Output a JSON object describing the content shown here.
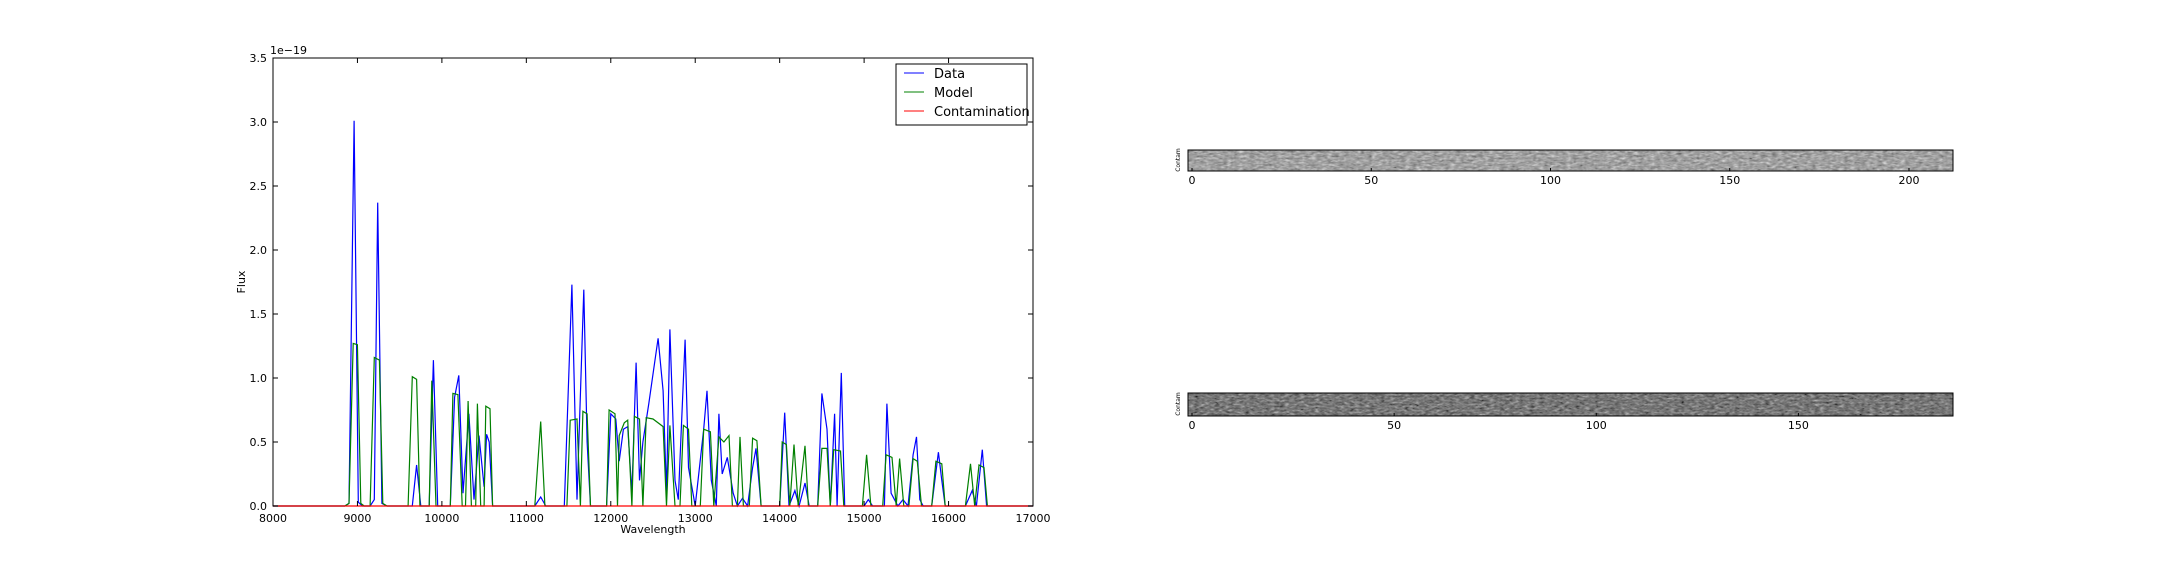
{
  "chart_data": [
    {
      "type": "line",
      "title": "",
      "xlabel": "Wavelength",
      "ylabel": "Flux",
      "y_offset_label": "1e−19",
      "xlim": [
        8000,
        17000
      ],
      "ylim": [
        0,
        3.5
      ],
      "xticks": [
        "8000",
        "9000",
        "10000",
        "11000",
        "12000",
        "13000",
        "14000",
        "15000",
        "16000",
        "17000"
      ],
      "yticks": [
        "0.0",
        "0.5",
        "1.0",
        "1.5",
        "2.0",
        "2.5",
        "3.0",
        "3.5"
      ],
      "grid": false,
      "legend_position": "top-right",
      "series": [
        {
          "name": "Data",
          "color": "#0000ff",
          "points": [
            [
              8000,
              0
            ],
            [
              8850,
              0
            ],
            [
              8900,
              0.02
            ],
            [
              8960,
              3.01
            ],
            [
              9010,
              0.03
            ],
            [
              9060,
              0
            ],
            [
              9150,
              0
            ],
            [
              9200,
              0.05
            ],
            [
              9240,
              2.37
            ],
            [
              9290,
              0.02
            ],
            [
              9350,
              0
            ],
            [
              9650,
              0
            ],
            [
              9700,
              0.32
            ],
            [
              9750,
              0
            ],
            [
              9850,
              0
            ],
            [
              9900,
              1.14
            ],
            [
              9950,
              0
            ],
            [
              10100,
              0
            ],
            [
              10150,
              0.85
            ],
            [
              10200,
              1.02
            ],
            [
              10250,
              0.1
            ],
            [
              10320,
              0.72
            ],
            [
              10380,
              0.05
            ],
            [
              10440,
              0.55
            ],
            [
              10500,
              0.15
            ],
            [
              10530,
              0.56
            ],
            [
              10560,
              0.5
            ],
            [
              10600,
              0
            ],
            [
              11100,
              0
            ],
            [
              11170,
              0.07
            ],
            [
              11230,
              0
            ],
            [
              11450,
              0
            ],
            [
              11540,
              1.73
            ],
            [
              11600,
              0.05
            ],
            [
              11680,
              1.69
            ],
            [
              11720,
              0.5
            ],
            [
              11760,
              0
            ],
            [
              11950,
              0
            ],
            [
              12000,
              0.72
            ],
            [
              12060,
              0.68
            ],
            [
              12100,
              0.35
            ],
            [
              12150,
              0.6
            ],
            [
              12200,
              0.62
            ],
            [
              12250,
              0.1
            ],
            [
              12300,
              1.12
            ],
            [
              12340,
              0.2
            ],
            [
              12380,
              0.5
            ],
            [
              12450,
              0.8
            ],
            [
              12560,
              1.31
            ],
            [
              12620,
              0.9
            ],
            [
              12660,
              0.1
            ],
            [
              12700,
              1.38
            ],
            [
              12760,
              0.2
            ],
            [
              12800,
              0.05
            ],
            [
              12880,
              1.3
            ],
            [
              12920,
              0.3
            ],
            [
              13000,
              0
            ],
            [
              13100,
              0.6
            ],
            [
              13140,
              0.9
            ],
            [
              13190,
              0.2
            ],
            [
              13250,
              0
            ],
            [
              13280,
              0.72
            ],
            [
              13320,
              0.25
            ],
            [
              13380,
              0.38
            ],
            [
              13450,
              0.1
            ],
            [
              13500,
              0
            ],
            [
              13560,
              0.06
            ],
            [
              13620,
              0
            ],
            [
              13680,
              0.3
            ],
            [
              13720,
              0.45
            ],
            [
              13780,
              0
            ],
            [
              14000,
              0
            ],
            [
              14060,
              0.73
            ],
            [
              14110,
              0
            ],
            [
              14180,
              0.12
            ],
            [
              14230,
              0
            ],
            [
              14300,
              0.18
            ],
            [
              14350,
              0
            ],
            [
              14450,
              0
            ],
            [
              14500,
              0.88
            ],
            [
              14560,
              0.6
            ],
            [
              14600,
              0
            ],
            [
              14650,
              0.72
            ],
            [
              14680,
              0
            ],
            [
              14730,
              1.04
            ],
            [
              14770,
              0
            ],
            [
              15000,
              0
            ],
            [
              15050,
              0.05
            ],
            [
              15100,
              0
            ],
            [
              15240,
              0
            ],
            [
              15270,
              0.8
            ],
            [
              15320,
              0.1
            ],
            [
              15400,
              0
            ],
            [
              15460,
              0.05
            ],
            [
              15520,
              0
            ],
            [
              15580,
              0.4
            ],
            [
              15620,
              0.54
            ],
            [
              15660,
              0.05
            ],
            [
              15700,
              0
            ],
            [
              15800,
              0
            ],
            [
              15880,
              0.42
            ],
            [
              15920,
              0.2
            ],
            [
              15960,
              0
            ],
            [
              16200,
              0
            ],
            [
              16280,
              0.12
            ],
            [
              16330,
              0
            ],
            [
              16400,
              0.44
            ],
            [
              16450,
              0
            ],
            [
              17000,
              0
            ]
          ]
        },
        {
          "name": "Model",
          "color": "#008000",
          "points": [
            [
              8000,
              0
            ],
            [
              8850,
              0
            ],
            [
              8900,
              0.02
            ],
            [
              8950,
              1.27
            ],
            [
              9000,
              1.26
            ],
            [
              9040,
              0.02
            ],
            [
              9080,
              0
            ],
            [
              9150,
              0
            ],
            [
              9200,
              1.16
            ],
            [
              9260,
              1.14
            ],
            [
              9300,
              0.02
            ],
            [
              9350,
              0
            ],
            [
              9600,
              0
            ],
            [
              9650,
              1.01
            ],
            [
              9700,
              0.99
            ],
            [
              9740,
              0
            ],
            [
              9850,
              0
            ],
            [
              9880,
              0.98
            ],
            [
              9930,
              0
            ],
            [
              10100,
              0
            ],
            [
              10130,
              0.88
            ],
            [
              10190,
              0.87
            ],
            [
              10240,
              0
            ],
            [
              10280,
              0
            ],
            [
              10310,
              0.82
            ],
            [
              10350,
              0
            ],
            [
              10400,
              0
            ],
            [
              10420,
              0.8
            ],
            [
              10460,
              0
            ],
            [
              10500,
              0
            ],
            [
              10520,
              0.78
            ],
            [
              10570,
              0.76
            ],
            [
              10600,
              0
            ],
            [
              11100,
              0
            ],
            [
              11170,
              0.66
            ],
            [
              11220,
              0
            ],
            [
              11480,
              0
            ],
            [
              11520,
              0.67
            ],
            [
              11600,
              0.68
            ],
            [
              11640,
              0
            ],
            [
              11670,
              0.74
            ],
            [
              11720,
              0.72
            ],
            [
              11760,
              0
            ],
            [
              11950,
              0
            ],
            [
              11980,
              0.75
            ],
            [
              12050,
              0.72
            ],
            [
              12080,
              0
            ],
            [
              12100,
              0.55
            ],
            [
              12160,
              0.65
            ],
            [
              12200,
              0.67
            ],
            [
              12250,
              0
            ],
            [
              12280,
              0.7
            ],
            [
              12340,
              0.68
            ],
            [
              12380,
              0
            ],
            [
              12420,
              0.69
            ],
            [
              12500,
              0.68
            ],
            [
              12620,
              0.62
            ],
            [
              12660,
              0
            ],
            [
              12700,
              0.63
            ],
            [
              12760,
              0
            ],
            [
              12820,
              0
            ],
            [
              12860,
              0.63
            ],
            [
              12920,
              0.6
            ],
            [
              12960,
              0
            ],
            [
              13060,
              0
            ],
            [
              13100,
              0.6
            ],
            [
              13180,
              0.58
            ],
            [
              13220,
              0
            ],
            [
              13280,
              0.54
            ],
            [
              13340,
              0.5
            ],
            [
              13400,
              0.55
            ],
            [
              13440,
              0
            ],
            [
              13500,
              0
            ],
            [
              13530,
              0.54
            ],
            [
              13570,
              0
            ],
            [
              13640,
              0
            ],
            [
              13680,
              0.53
            ],
            [
              13730,
              0.51
            ],
            [
              13780,
              0
            ],
            [
              14000,
              0
            ],
            [
              14030,
              0.5
            ],
            [
              14080,
              0.48
            ],
            [
              14120,
              0
            ],
            [
              14170,
              0.48
            ],
            [
              14220,
              0
            ],
            [
              14300,
              0.47
            ],
            [
              14340,
              0
            ],
            [
              14450,
              0
            ],
            [
              14500,
              0.45
            ],
            [
              14560,
              0.45
            ],
            [
              14600,
              0
            ],
            [
              14640,
              0.44
            ],
            [
              14720,
              0.43
            ],
            [
              14760,
              0
            ],
            [
              14980,
              0
            ],
            [
              15030,
              0.4
            ],
            [
              15080,
              0
            ],
            [
              15220,
              0
            ],
            [
              15260,
              0.4
            ],
            [
              15330,
              0.38
            ],
            [
              15380,
              0
            ],
            [
              15420,
              0.37
            ],
            [
              15470,
              0
            ],
            [
              15530,
              0
            ],
            [
              15580,
              0.37
            ],
            [
              15630,
              0.35
            ],
            [
              15680,
              0
            ],
            [
              15800,
              0
            ],
            [
              15850,
              0.35
            ],
            [
              15920,
              0.33
            ],
            [
              15960,
              0
            ],
            [
              16200,
              0
            ],
            [
              16260,
              0.33
            ],
            [
              16310,
              0
            ],
            [
              16360,
              0.32
            ],
            [
              16420,
              0.3
            ],
            [
              16460,
              0
            ],
            [
              17000,
              0
            ]
          ]
        },
        {
          "name": "Contamination",
          "color": "#ff0000",
          "points": [
            [
              8000,
              0
            ],
            [
              17000,
              0
            ]
          ]
        }
      ]
    },
    {
      "type": "heatmap",
      "ylabel": "Contam",
      "xlim": [
        0,
        212
      ],
      "xticks": [
        "0",
        "50",
        "100",
        "150",
        "200"
      ]
    },
    {
      "type": "heatmap",
      "ylabel": "Contam",
      "xlim": [
        0,
        188
      ],
      "xticks": [
        "0",
        "50",
        "100",
        "150"
      ]
    }
  ]
}
